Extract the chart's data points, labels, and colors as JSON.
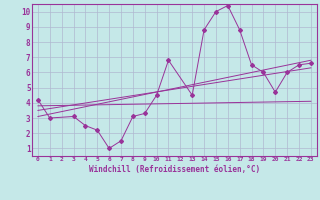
{
  "title": "",
  "xlabel": "Windchill (Refroidissement éolien,°C)",
  "ylabel": "",
  "bg_color": "#c5e8e8",
  "line_color": "#993399",
  "grid_color": "#b0b8d0",
  "xlim": [
    -0.5,
    23.5
  ],
  "ylim": [
    0.5,
    10.5
  ],
  "xticks": [
    0,
    1,
    2,
    3,
    4,
    5,
    6,
    7,
    8,
    9,
    10,
    11,
    12,
    13,
    14,
    15,
    16,
    17,
    18,
    19,
    20,
    21,
    22,
    23
  ],
  "yticks": [
    1,
    2,
    3,
    4,
    5,
    6,
    7,
    8,
    9,
    10
  ],
  "main_line_x": [
    0,
    1,
    3,
    4,
    5,
    6,
    7,
    8,
    9,
    10,
    11,
    13,
    14,
    15,
    16,
    17,
    18,
    19,
    20,
    21,
    22,
    23
  ],
  "main_line_y": [
    4.2,
    3.0,
    3.1,
    2.5,
    2.2,
    1.0,
    1.5,
    3.1,
    3.3,
    4.5,
    6.8,
    4.5,
    8.8,
    10.0,
    10.4,
    8.8,
    6.5,
    6.0,
    4.7,
    6.0,
    6.5,
    6.6
  ],
  "reg_line1_x": [
    0,
    23
  ],
  "reg_line1_y": [
    3.1,
    6.8
  ],
  "reg_line2_x": [
    0,
    23
  ],
  "reg_line2_y": [
    3.5,
    6.3
  ],
  "reg_line3_x": [
    0,
    23
  ],
  "reg_line3_y": [
    3.8,
    4.1
  ]
}
